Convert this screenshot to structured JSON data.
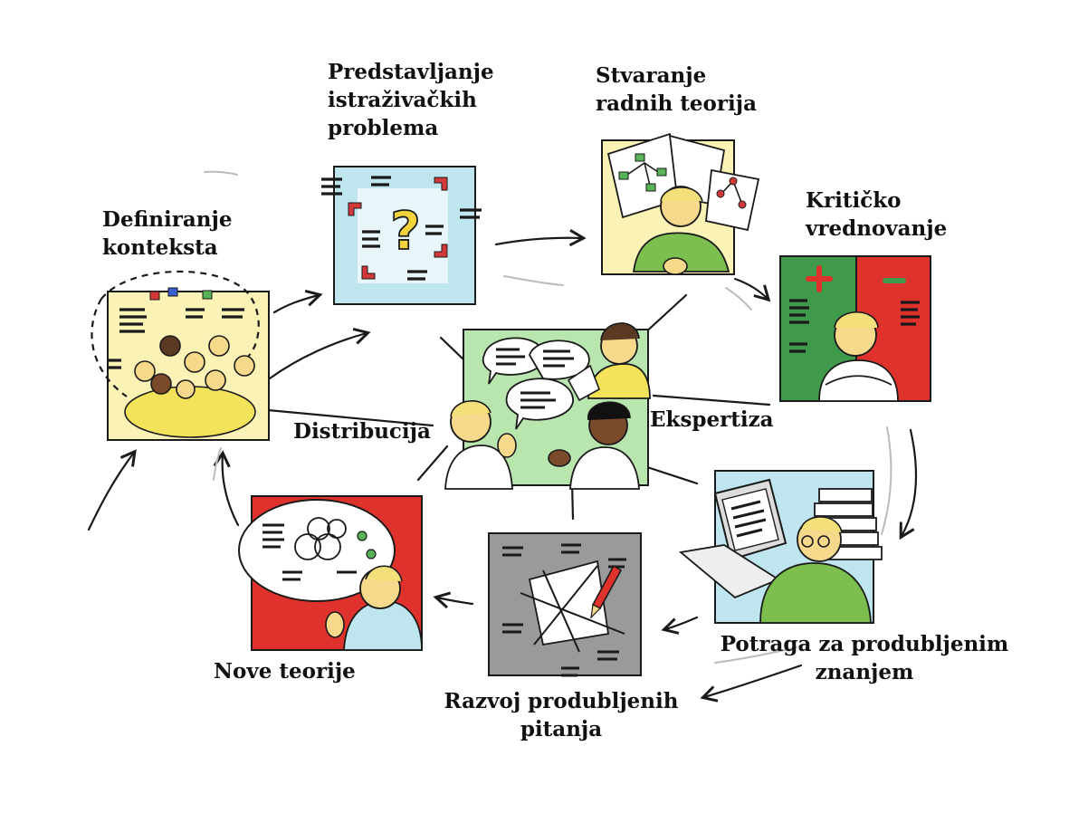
{
  "colors": {
    "ink": "#1a1a1a",
    "paper_yellow": "#fbf3b5",
    "paper_cyan": "#bfe6ef",
    "panel_green": "#3f9a4b",
    "panel_red": "#e0322c",
    "panel_gray": "#9a9a9a",
    "bubble_green": "#b8e6ae",
    "skin": "#f7d98c",
    "shirt_yellow": "#f2e35a",
    "shirt_green": "#7cbf4e"
  },
  "stages": [
    {
      "id": "definiranje",
      "lines": [
        "Definiranje",
        "konteksta"
      ]
    },
    {
      "id": "predstavljanje",
      "lines": [
        "Predstavljanje",
        "istraživačkih",
        "problema"
      ]
    },
    {
      "id": "stvaranje",
      "lines": [
        "Stvaranje",
        "radnih teorija"
      ]
    },
    {
      "id": "kriticko",
      "lines": [
        "Kritičko",
        "vrednovanje"
      ]
    },
    {
      "id": "potraga",
      "lines": [
        "Potraga za produbljenim",
        "znanjem"
      ]
    },
    {
      "id": "razvoj",
      "lines": [
        "Razvoj produbljenih",
        "pitanja"
      ]
    },
    {
      "id": "nove",
      "lines": [
        "Nove teorije"
      ]
    }
  ],
  "center": {
    "left_label": "Distribucija",
    "right_label": "Ekspertiza"
  }
}
